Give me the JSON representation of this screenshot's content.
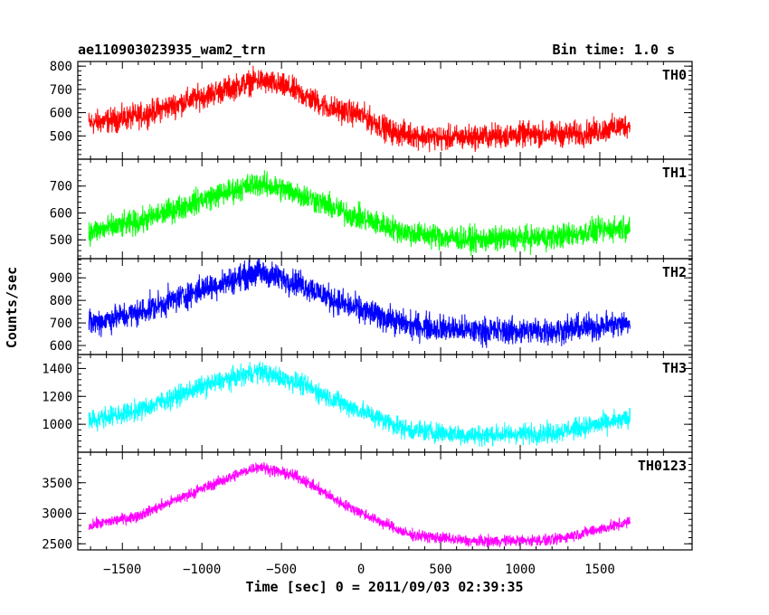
{
  "chart_data": {
    "type": "line",
    "title": "ae110903023935_wam2_trn",
    "bin_label": "Bin time: 1.0 s",
    "xlabel": "Time [sec] 0 = 2011/09/03 02:39:35",
    "ylabel": "Counts/sec",
    "xlim": [
      -1780,
      2080
    ],
    "x_ticks": [
      -1500,
      -1000,
      -500,
      0,
      500,
      1000,
      1500
    ],
    "x_tick_labels": [
      "−1500",
      "−1000",
      "−500",
      "0",
      "500",
      "1000",
      "1500"
    ],
    "x_range": [
      -1710,
      1690
    ],
    "panels": [
      {
        "name": "TH0",
        "color": "#ff0000",
        "ylim": [
          400,
          820
        ],
        "ticks": [
          500,
          600,
          700,
          800
        ],
        "tick_labels": [
          "500",
          "600",
          "700",
          "800"
        ],
        "profile": [
          [
            -1700,
            555
          ],
          [
            -1400,
            585
          ],
          [
            -1000,
            670
          ],
          [
            -650,
            740
          ],
          [
            -450,
            705
          ],
          [
            -200,
            620
          ],
          [
            0,
            590
          ],
          [
            200,
            515
          ],
          [
            500,
            490
          ],
          [
            1000,
            505
          ],
          [
            1400,
            510
          ],
          [
            1700,
            550
          ]
        ],
        "noise": 40
      },
      {
        "name": "TH1",
        "color": "#00ff00",
        "ylim": [
          430,
          800
        ],
        "ticks": [
          500,
          600,
          700
        ],
        "tick_labels": [
          "500",
          "600",
          "700"
        ],
        "profile": [
          [
            -1700,
            530
          ],
          [
            -1400,
            565
          ],
          [
            -1000,
            650
          ],
          [
            -650,
            710
          ],
          [
            -400,
            675
          ],
          [
            -100,
            600
          ],
          [
            300,
            525
          ],
          [
            700,
            500
          ],
          [
            1200,
            510
          ],
          [
            1700,
            550
          ]
        ],
        "noise": 35
      },
      {
        "name": "TH2",
        "color": "#0000ff",
        "ylim": [
          560,
          985
        ],
        "ticks": [
          600,
          700,
          800,
          900
        ],
        "tick_labels": [
          "600",
          "700",
          "800",
          "900"
        ],
        "profile": [
          [
            -1700,
            700
          ],
          [
            -1400,
            745
          ],
          [
            -1000,
            850
          ],
          [
            -650,
            925
          ],
          [
            -400,
            880
          ],
          [
            -100,
            780
          ],
          [
            300,
            690
          ],
          [
            700,
            665
          ],
          [
            1200,
            665
          ],
          [
            1700,
            700
          ]
        ],
        "noise": 45
      },
      {
        "name": "TH3",
        "color": "#00ffff",
        "ylim": [
          800,
          1500
        ],
        "ticks": [
          1000,
          1200,
          1400
        ],
        "tick_labels": [
          "1000",
          "1200",
          "1400"
        ],
        "profile": [
          [
            -1700,
            1030
          ],
          [
            -1400,
            1100
          ],
          [
            -1000,
            1270
          ],
          [
            -650,
            1380
          ],
          [
            -400,
            1300
          ],
          [
            -100,
            1140
          ],
          [
            300,
            960
          ],
          [
            700,
            920
          ],
          [
            1200,
            940
          ],
          [
            1700,
            1040
          ]
        ],
        "noise": 55
      },
      {
        "name": "TH0123",
        "color": "#ff00ff",
        "ylim": [
          2400,
          4000
        ],
        "ticks": [
          2500,
          3000,
          3500
        ],
        "tick_labels": [
          "2500",
          "3000",
          "3500"
        ],
        "profile": [
          [
            -1700,
            2800
          ],
          [
            -1400,
            2960
          ],
          [
            -1000,
            3400
          ],
          [
            -650,
            3770
          ],
          [
            -400,
            3600
          ],
          [
            -100,
            3130
          ],
          [
            300,
            2650
          ],
          [
            700,
            2540
          ],
          [
            1200,
            2560
          ],
          [
            1700,
            2860
          ]
        ],
        "noise": 70
      }
    ]
  }
}
